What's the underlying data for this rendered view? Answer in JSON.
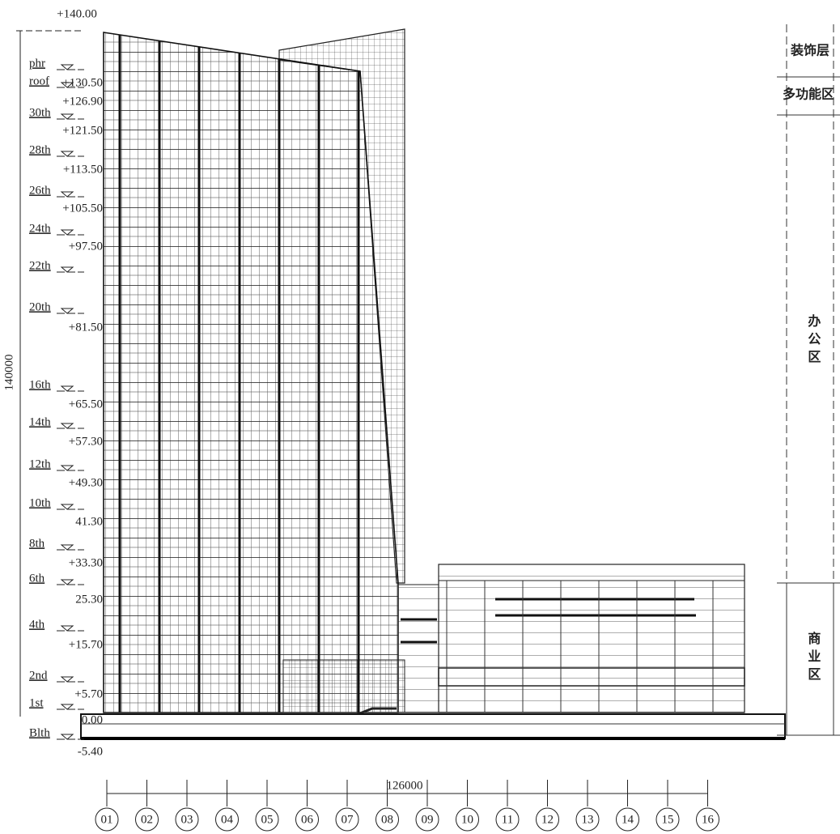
{
  "dimensions": {
    "top_elevation": "+140.00",
    "height": "140000",
    "width": "126000"
  },
  "levels": [
    {
      "name": "phr",
      "elevation": "+130.50"
    },
    {
      "name": "roof",
      "elevation": "+126.90"
    },
    {
      "name": "30th",
      "elevation": "+121.50"
    },
    {
      "name": "28th",
      "elevation": "+113.50"
    },
    {
      "name": "26th",
      "elevation": "+105.50"
    },
    {
      "name": "24th",
      "elevation": "+97.50"
    },
    {
      "name": "22th"
    },
    {
      "name": "20th",
      "elevation": "+81.50"
    },
    {
      "name": "16th",
      "elevation": "+65.50"
    },
    {
      "name": "14th",
      "elevation": "+57.30"
    },
    {
      "name": "12th",
      "elevation": "+49.30"
    },
    {
      "name": "10th",
      "elevation": "41.30"
    },
    {
      "name": "8th",
      "elevation": "+33.30"
    },
    {
      "name": "6th",
      "elevation": "25.30"
    },
    {
      "name": "4th",
      "elevation": "+15.70"
    },
    {
      "name": "2nd",
      "elevation": "+5.70"
    },
    {
      "name": "1st",
      "elevation": "0.00"
    },
    {
      "name": "Blth",
      "elevation": "-5.40"
    }
  ],
  "zones": [
    "装饰层",
    "多功能区",
    "办公区",
    "商业区"
  ],
  "grid_axes": [
    "01",
    "02",
    "03",
    "04",
    "05",
    "06",
    "07",
    "08",
    "09",
    "10",
    "11",
    "12",
    "13",
    "14",
    "15",
    "16"
  ]
}
